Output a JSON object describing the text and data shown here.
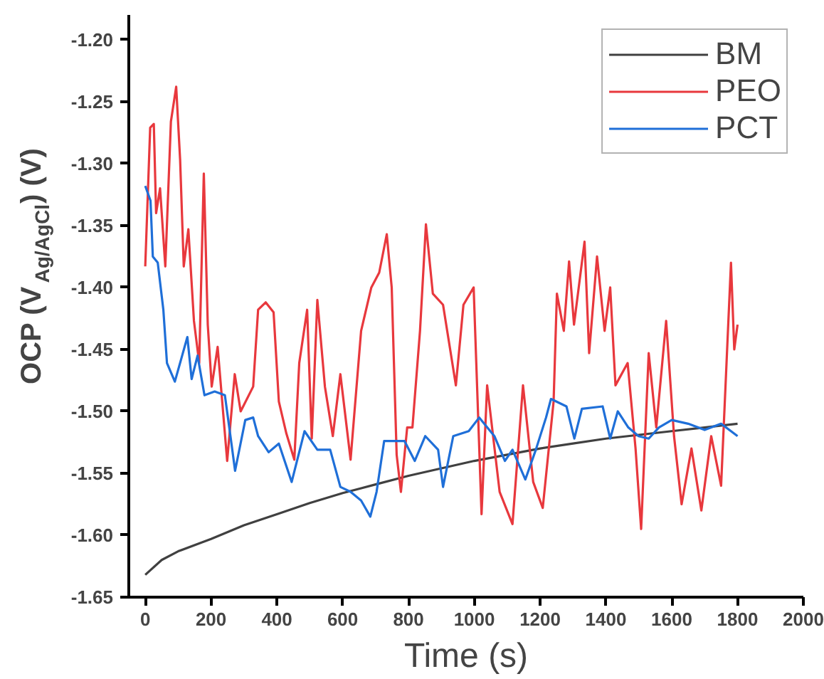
{
  "chart_data": {
    "type": "line",
    "xlabel": "Time (s)",
    "ylabel": "OCP (V$_{Ag/AgCl}$) (V)",
    "xlim": [
      -50,
      2000
    ],
    "xticks": [
      0,
      200,
      400,
      600,
      800,
      1000,
      1200,
      1400,
      1600,
      1800,
      2000
    ],
    "ylim": [
      -1.65,
      -1.18
    ],
    "yticks": [
      {
        "value": -1.65,
        "label": "-1.65"
      },
      {
        "value": -1.6,
        "label": "-1.60"
      },
      {
        "value": -1.55,
        "label": "-1.55"
      },
      {
        "value": -1.5,
        "label": "-1.50"
      },
      {
        "value": -1.45,
        "label": "-1.45"
      },
      {
        "value": -1.4,
        "label": "-1.40"
      },
      {
        "value": -1.35,
        "label": "-1.35"
      },
      {
        "value": -1.3,
        "label": "-1.30"
      },
      {
        "value": -1.25,
        "label": "-1.25"
      },
      {
        "value": -1.2,
        "label": "-1.20"
      }
    ],
    "grid": false,
    "legend": "top right",
    "marker": "none",
    "line_style": "solid",
    "series": [
      {
        "name": "BM",
        "color": "#404040",
        "x": [
          0,
          50,
          100,
          200,
          300,
          400,
          500,
          600,
          700,
          800,
          900,
          1000,
          1100,
          1200,
          1300,
          1400,
          1500,
          1600,
          1700,
          1800
        ],
        "values": [
          -1.632,
          -1.62,
          -1.613,
          -1.603,
          -1.592,
          -1.583,
          -1.574,
          -1.566,
          -1.559,
          -1.552,
          -1.546,
          -1.54,
          -1.535,
          -1.53,
          -1.526,
          -1.522,
          -1.519,
          -1.516,
          -1.513,
          -1.51
        ]
      },
      {
        "name": "PEO",
        "color": "#e8383d",
        "x": [
          0,
          15,
          26,
          33,
          45,
          61,
          78,
          94,
          106,
          117,
          131,
          148,
          164,
          178,
          190,
          202,
          220,
          249,
          272,
          290,
          328,
          343,
          366,
          390,
          406,
          429,
          453,
          468,
          492,
          506,
          523,
          546,
          570,
          593,
          624,
          656,
          687,
          711,
          734,
          749,
          764,
          777,
          796,
          812,
          835,
          853,
          874,
          905,
          944,
          967,
          998,
          1022,
          1039,
          1077,
          1116,
          1148,
          1179,
          1208,
          1241,
          1251,
          1272,
          1288,
          1303,
          1335,
          1349,
          1373,
          1396,
          1413,
          1429,
          1466,
          1490,
          1507,
          1530,
          1553,
          1583,
          1607,
          1630,
          1660,
          1690,
          1720,
          1750,
          1765,
          1780,
          1790,
          1800
        ],
        "values": [
          -1.383,
          -1.271,
          -1.268,
          -1.34,
          -1.32,
          -1.383,
          -1.266,
          -1.238,
          -1.297,
          -1.383,
          -1.353,
          -1.427,
          -1.461,
          -1.308,
          -1.43,
          -1.48,
          -1.448,
          -1.54,
          -1.47,
          -1.5,
          -1.48,
          -1.418,
          -1.412,
          -1.42,
          -1.492,
          -1.518,
          -1.539,
          -1.461,
          -1.418,
          -1.522,
          -1.41,
          -1.48,
          -1.52,
          -1.47,
          -1.539,
          -1.435,
          -1.4,
          -1.388,
          -1.357,
          -1.4,
          -1.535,
          -1.565,
          -1.513,
          -1.513,
          -1.435,
          -1.349,
          -1.405,
          -1.414,
          -1.479,
          -1.414,
          -1.4,
          -1.583,
          -1.479,
          -1.565,
          -1.591,
          -1.479,
          -1.557,
          -1.578,
          -1.492,
          -1.405,
          -1.435,
          -1.379,
          -1.43,
          -1.363,
          -1.453,
          -1.375,
          -1.435,
          -1.4,
          -1.479,
          -1.461,
          -1.53,
          -1.595,
          -1.453,
          -1.513,
          -1.427,
          -1.52,
          -1.575,
          -1.53,
          -1.58,
          -1.52,
          -1.56,
          -1.47,
          -1.38,
          -1.45,
          -1.43
        ]
      },
      {
        "name": "PCT",
        "color": "#1f6fd8",
        "x": [
          0,
          16,
          23,
          38,
          55,
          66,
          90,
          109,
          128,
          141,
          159,
          180,
          211,
          242,
          262,
          273,
          304,
          328,
          343,
          375,
          406,
          445,
          484,
          523,
          562,
          593,
          624,
          656,
          684,
          703,
          726,
          788,
          819,
          851,
          890,
          905,
          936,
          983,
          1015,
          1061,
          1093,
          1116,
          1155,
          1187,
          1218,
          1233,
          1280,
          1304,
          1327,
          1390,
          1413,
          1436,
          1468,
          1499,
          1530,
          1561,
          1600,
          1650,
          1700,
          1750,
          1800
        ],
        "values": [
          -1.318,
          -1.33,
          -1.375,
          -1.38,
          -1.418,
          -1.461,
          -1.476,
          -1.458,
          -1.44,
          -1.474,
          -1.455,
          -1.487,
          -1.484,
          -1.487,
          -1.526,
          -1.548,
          -1.507,
          -1.505,
          -1.52,
          -1.533,
          -1.526,
          -1.557,
          -1.516,
          -1.531,
          -1.531,
          -1.561,
          -1.565,
          -1.572,
          -1.585,
          -1.565,
          -1.524,
          -1.524,
          -1.54,
          -1.52,
          -1.531,
          -1.561,
          -1.52,
          -1.516,
          -1.505,
          -1.52,
          -1.54,
          -1.531,
          -1.555,
          -1.531,
          -1.505,
          -1.49,
          -1.496,
          -1.522,
          -1.498,
          -1.496,
          -1.522,
          -1.5,
          -1.513,
          -1.52,
          -1.522,
          -1.513,
          -1.507,
          -1.51,
          -1.515,
          -1.51,
          -1.52
        ]
      }
    ]
  }
}
